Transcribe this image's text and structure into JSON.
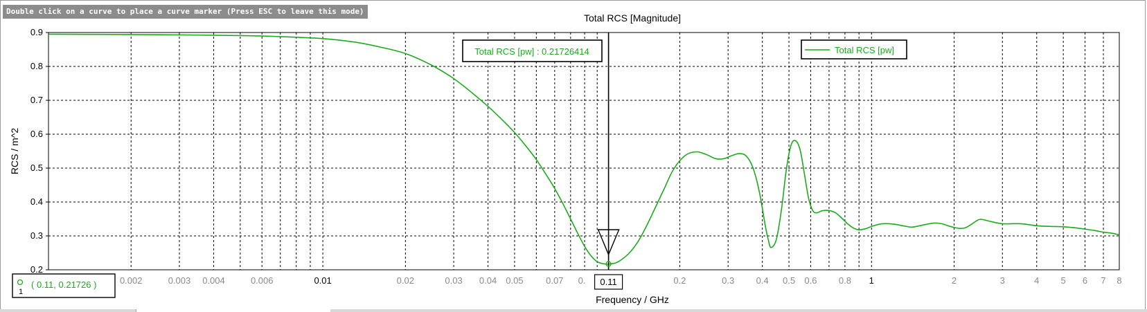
{
  "mode_hint": "Double click on a curve to place a curve marker (Press ESC to leave this mode)",
  "colors": {
    "curve": "#1aab1a",
    "marker_text": "#1aab1a",
    "grid": "#000000",
    "label": "#000000",
    "minor_tick_label": "#8a8a8a"
  },
  "marker": {
    "label": "Total RCS [pw] : 0.21726414",
    "x_value": "0.11",
    "readout_index": "1",
    "readout_text": "( 0.11, 0.21726 )"
  },
  "chart_data": {
    "type": "line",
    "title": "Total RCS [Magnitude]",
    "xlabel": "Frequency / GHz",
    "ylabel": "RCS / m^2",
    "xscale": "log",
    "xlim": [
      0.001,
      8
    ],
    "ylim": [
      0.2,
      0.9
    ],
    "yticks": [
      0.2,
      0.3,
      0.4,
      0.5,
      0.6,
      0.7,
      0.8,
      0.9
    ],
    "xticks_major": [
      {
        "v": 0.01,
        "label": "0.01"
      },
      {
        "v": 1,
        "label": "1"
      }
    ],
    "xticks_minor": [
      {
        "v": 0.002,
        "label": "0.002"
      },
      {
        "v": 0.003,
        "label": "0.003"
      },
      {
        "v": 0.004,
        "label": "0.004"
      },
      {
        "v": 0.006,
        "label": "0.006"
      },
      {
        "v": 0.02,
        "label": "0.02"
      },
      {
        "v": 0.03,
        "label": "0.03"
      },
      {
        "v": 0.04,
        "label": "0.04"
      },
      {
        "v": 0.05,
        "label": "0.05"
      },
      {
        "v": 0.07,
        "label": "0.07"
      },
      {
        "v": 0.2,
        "label": "0.2"
      },
      {
        "v": 0.3,
        "label": "0.3"
      },
      {
        "v": 0.4,
        "label": "0.4"
      },
      {
        "v": 0.5,
        "label": "0.5"
      },
      {
        "v": 0.6,
        "label": "0.6"
      },
      {
        "v": 0.8,
        "label": "0.8"
      },
      {
        "v": 2,
        "label": "2"
      },
      {
        "v": 3,
        "label": "3"
      },
      {
        "v": 4,
        "label": "4"
      },
      {
        "v": 5,
        "label": "5"
      },
      {
        "v": 6,
        "label": "6"
      },
      {
        "v": 7,
        "label": "7"
      },
      {
        "v": 8,
        "label": "8"
      }
    ],
    "xticks_partial": [
      {
        "v": 0.09,
        "label": "0."
      }
    ],
    "grid": true,
    "legend_position": "top-right",
    "series": [
      {
        "name": "Total RCS [pw]",
        "x": [
          0.001,
          0.002,
          0.003,
          0.005,
          0.007,
          0.01,
          0.013,
          0.016,
          0.02,
          0.025,
          0.03,
          0.035,
          0.04,
          0.045,
          0.05,
          0.055,
          0.06,
          0.065,
          0.07,
          0.075,
          0.08,
          0.085,
          0.09,
          0.095,
          0.1,
          0.105,
          0.11,
          0.115,
          0.12,
          0.13,
          0.14,
          0.15,
          0.16,
          0.175,
          0.19,
          0.21,
          0.23,
          0.25,
          0.27,
          0.29,
          0.31,
          0.33,
          0.35,
          0.37,
          0.39,
          0.41,
          0.42,
          0.43,
          0.45,
          0.47,
          0.49,
          0.51,
          0.53,
          0.55,
          0.57,
          0.59,
          0.61,
          0.63,
          0.66,
          0.7,
          0.74,
          0.78,
          0.82,
          0.86,
          0.9,
          0.95,
          1.0,
          1.05,
          1.1,
          1.2,
          1.3,
          1.4,
          1.5,
          1.6,
          1.7,
          1.8,
          1.9,
          2.0,
          2.1,
          2.2,
          2.3,
          2.4,
          2.5,
          2.7,
          3.0,
          3.5,
          4.0,
          4.5,
          5.0,
          5.5,
          6.0,
          6.5,
          7.0,
          7.5,
          8.0
        ],
        "values": [
          0.895,
          0.894,
          0.893,
          0.891,
          0.888,
          0.882,
          0.872,
          0.858,
          0.838,
          0.803,
          0.764,
          0.722,
          0.682,
          0.643,
          0.605,
          0.565,
          0.525,
          0.482,
          0.44,
          0.395,
          0.35,
          0.307,
          0.269,
          0.241,
          0.224,
          0.218,
          0.217,
          0.219,
          0.225,
          0.247,
          0.28,
          0.323,
          0.37,
          0.437,
          0.497,
          0.538,
          0.548,
          0.54,
          0.528,
          0.528,
          0.537,
          0.543,
          0.535,
          0.5,
          0.43,
          0.33,
          0.29,
          0.266,
          0.29,
          0.38,
          0.5,
          0.57,
          0.58,
          0.552,
          0.48,
          0.41,
          0.375,
          0.368,
          0.374,
          0.375,
          0.368,
          0.352,
          0.335,
          0.323,
          0.318,
          0.321,
          0.328,
          0.333,
          0.336,
          0.335,
          0.33,
          0.326,
          0.33,
          0.335,
          0.338,
          0.336,
          0.33,
          0.325,
          0.322,
          0.324,
          0.333,
          0.343,
          0.349,
          0.343,
          0.336,
          0.336,
          0.33,
          0.328,
          0.327,
          0.324,
          0.32,
          0.316,
          0.311,
          0.308,
          0.303
        ]
      }
    ]
  }
}
